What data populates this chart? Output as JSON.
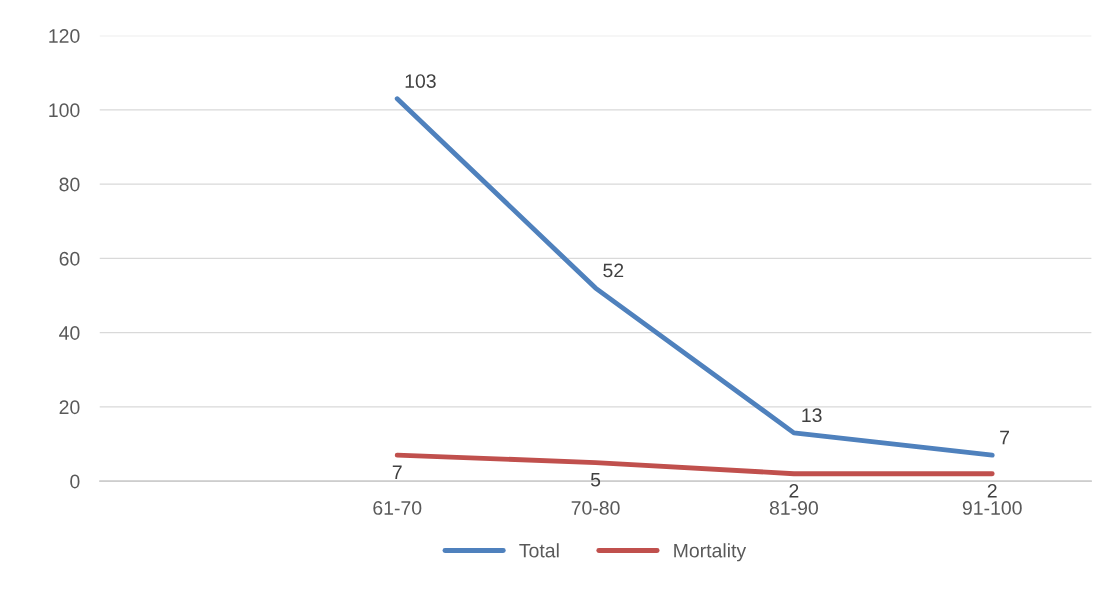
{
  "chart_data": {
    "type": "line",
    "categories": [
      null,
      "61-70",
      "70-80",
      "81-90",
      "91-100"
    ],
    "series": [
      {
        "name": "Total",
        "color": "#4f81bd",
        "values": [
          null,
          103,
          52,
          13,
          7
        ]
      },
      {
        "name": "Mortality",
        "color": "#c0504d",
        "values": [
          null,
          7,
          5,
          2,
          2
        ]
      }
    ],
    "ylim": [
      0,
      120
    ],
    "yticks": [
      0,
      20,
      40,
      60,
      80,
      100,
      120
    ],
    "grid": "y",
    "legend": "bottom",
    "data_labels": true,
    "marker": "none",
    "line_style": "solid"
  }
}
